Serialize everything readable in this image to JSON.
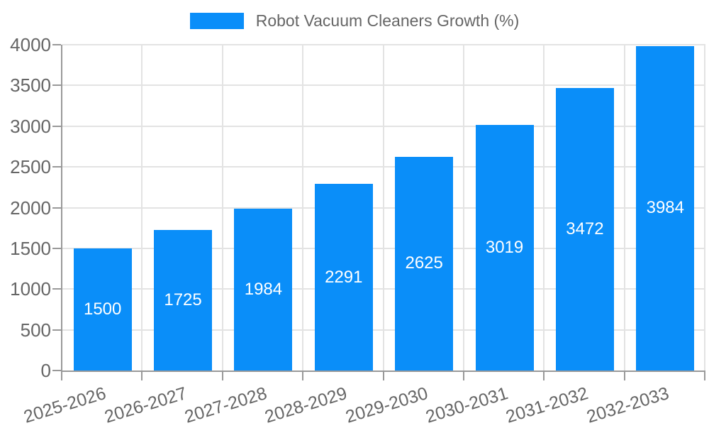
{
  "chart_data": {
    "type": "bar",
    "title": "Robot Vacuum Cleaners Growth (%)",
    "categories": [
      "2025-2026",
      "2026-2027",
      "2027-2028",
      "2028-2029",
      "2029-2030",
      "2030-2031",
      "2031-2032",
      "2032-2033"
    ],
    "values": [
      1500,
      1725,
      1984,
      2291,
      2625,
      3019,
      3472,
      3984
    ],
    "value_labels": [
      "1500",
      "1725",
      "1984",
      "2291",
      "2625",
      "3019",
      "3472",
      "3984"
    ],
    "xlabel": "",
    "ylabel": "",
    "ylim": [
      0,
      4000
    ],
    "yticks": [
      0,
      500,
      1000,
      1500,
      2000,
      2500,
      3000,
      3500,
      4000
    ],
    "grid": true,
    "legend_position": "top",
    "bar_color": "#0a8ef9",
    "colors": {
      "grid": "#e3e3e3",
      "axis": "#999999",
      "tick_text": "#666666",
      "bar_value_text": "#ffffff"
    }
  }
}
